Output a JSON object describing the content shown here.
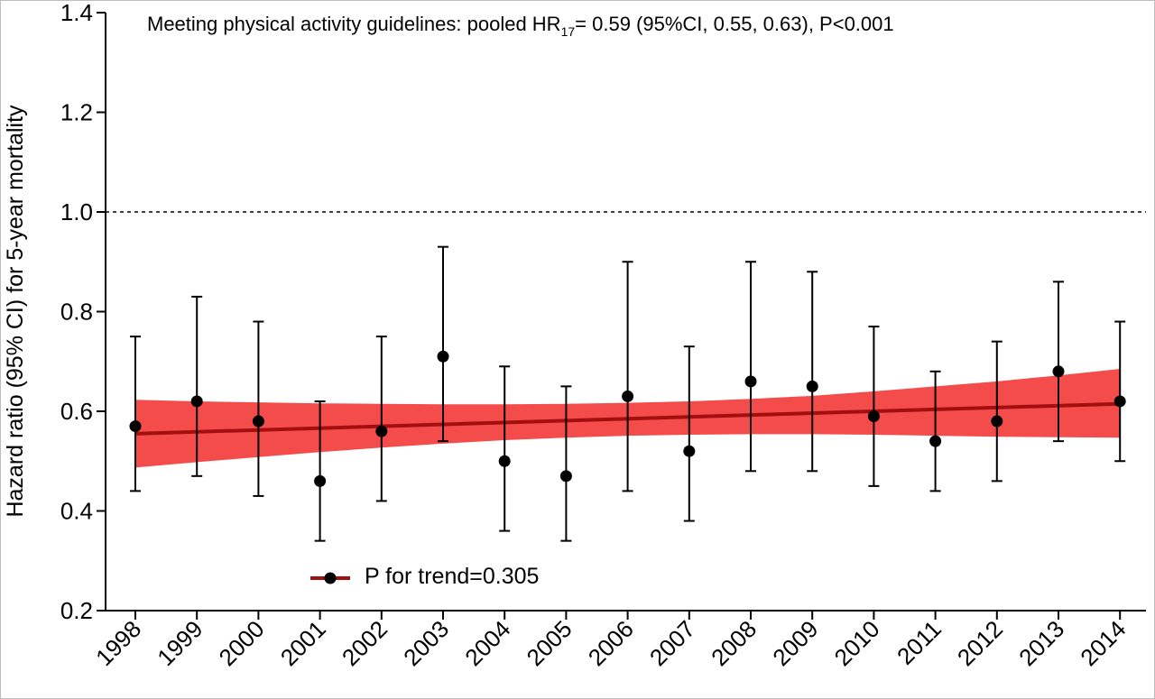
{
  "chart_data": {
    "type": "scatter",
    "title_prefix": "Meeting physical activity guidelines: pooled HR",
    "title_subscript": "17",
    "title_suffix": "= 0.59 (95%CI, 0.55, 0.63), P<0.001",
    "ylabel": "Hazard ratio (95% CI) for 5-year mortality",
    "xlabel": "",
    "ylim": [
      0.2,
      1.4
    ],
    "yticks": [
      "0.2",
      "0.4",
      "0.6",
      "0.8",
      "1.0",
      "1.2",
      "1.4"
    ],
    "reference_line": 1.0,
    "categories": [
      "1998",
      "1999",
      "2000",
      "2001",
      "2002",
      "2003",
      "2004",
      "2005",
      "2006",
      "2007",
      "2008",
      "2009",
      "2010",
      "2011",
      "2012",
      "2013",
      "2014"
    ],
    "series": [
      {
        "hr": [
          0.57,
          0.62,
          0.58,
          0.46,
          0.56,
          0.71,
          0.5,
          0.47,
          0.63,
          0.52,
          0.66,
          0.65,
          0.59,
          0.54,
          0.58,
          0.68,
          0.62
        ],
        "lower": [
          0.44,
          0.47,
          0.43,
          0.34,
          0.42,
          0.54,
          0.36,
          0.34,
          0.44,
          0.38,
          0.48,
          0.48,
          0.45,
          0.44,
          0.46,
          0.54,
          0.5
        ],
        "upper": [
          0.75,
          0.83,
          0.78,
          0.62,
          0.75,
          0.93,
          0.69,
          0.65,
          0.9,
          0.73,
          0.9,
          0.88,
          0.77,
          0.68,
          0.74,
          0.86,
          0.78
        ]
      }
    ],
    "trend": {
      "label": "P for trend=0.305",
      "fit_start": 0.555,
      "fit_end": 0.615,
      "band_lower": [
        0.487,
        0.498,
        0.508,
        0.518,
        0.527,
        0.535,
        0.542,
        0.547,
        0.551,
        0.553,
        0.554,
        0.554,
        0.553,
        0.551,
        0.549,
        0.548,
        0.547
      ],
      "band_upper": [
        0.623,
        0.62,
        0.618,
        0.616,
        0.615,
        0.614,
        0.614,
        0.615,
        0.617,
        0.62,
        0.625,
        0.631,
        0.64,
        0.65,
        0.66,
        0.672,
        0.685
      ]
    },
    "colors": {
      "band": "#f44b4b",
      "trend_line": "#a30f0f",
      "points": "#000000",
      "reference": "#000000"
    },
    "legend_position": "bottom-left",
    "grid": false
  }
}
